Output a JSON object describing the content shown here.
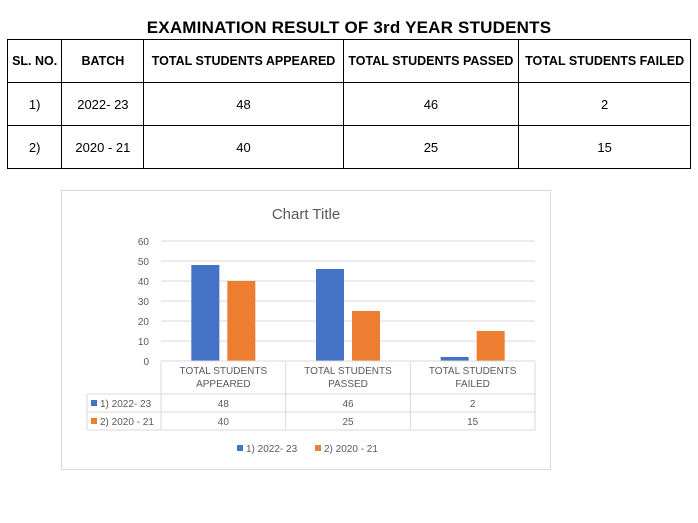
{
  "page": {
    "title": "EXAMINATION RESULT OF 3rd YEAR STUDENTS"
  },
  "table": {
    "headers": [
      "SL. NO.",
      "BATCH",
      "TOTAL STUDENTS APPEARED",
      "TOTAL STUDENTS PASSED",
      "TOTAL STUDENTS FAILED"
    ],
    "rows": [
      [
        "1)",
        "2022- 23",
        "48",
        "46",
        "2"
      ],
      [
        "2)",
        "2020 - 21",
        "40",
        "25",
        "15"
      ]
    ]
  },
  "chart_data": {
    "type": "bar",
    "title": "Chart Title",
    "categories": [
      [
        "TOTAL STUDENTS",
        "APPEARED"
      ],
      [
        "TOTAL STUDENTS",
        "PASSED"
      ],
      [
        "TOTAL STUDENTS",
        "FAILED"
      ]
    ],
    "series": [
      {
        "name": "1) 2022- 23",
        "values": [
          48,
          46,
          2
        ],
        "color": "#4472c4"
      },
      {
        "name": "2) 2020 - 21",
        "values": [
          40,
          25,
          15
        ],
        "color": "#ed7d31"
      }
    ],
    "ylim": [
      0,
      60
    ],
    "yticks": [
      0,
      10,
      20,
      30,
      40,
      50,
      60
    ],
    "grid": true,
    "legend": "bottom",
    "data_table": true,
    "axis_color": "#595959",
    "grid_color": "#d9d9d9"
  }
}
